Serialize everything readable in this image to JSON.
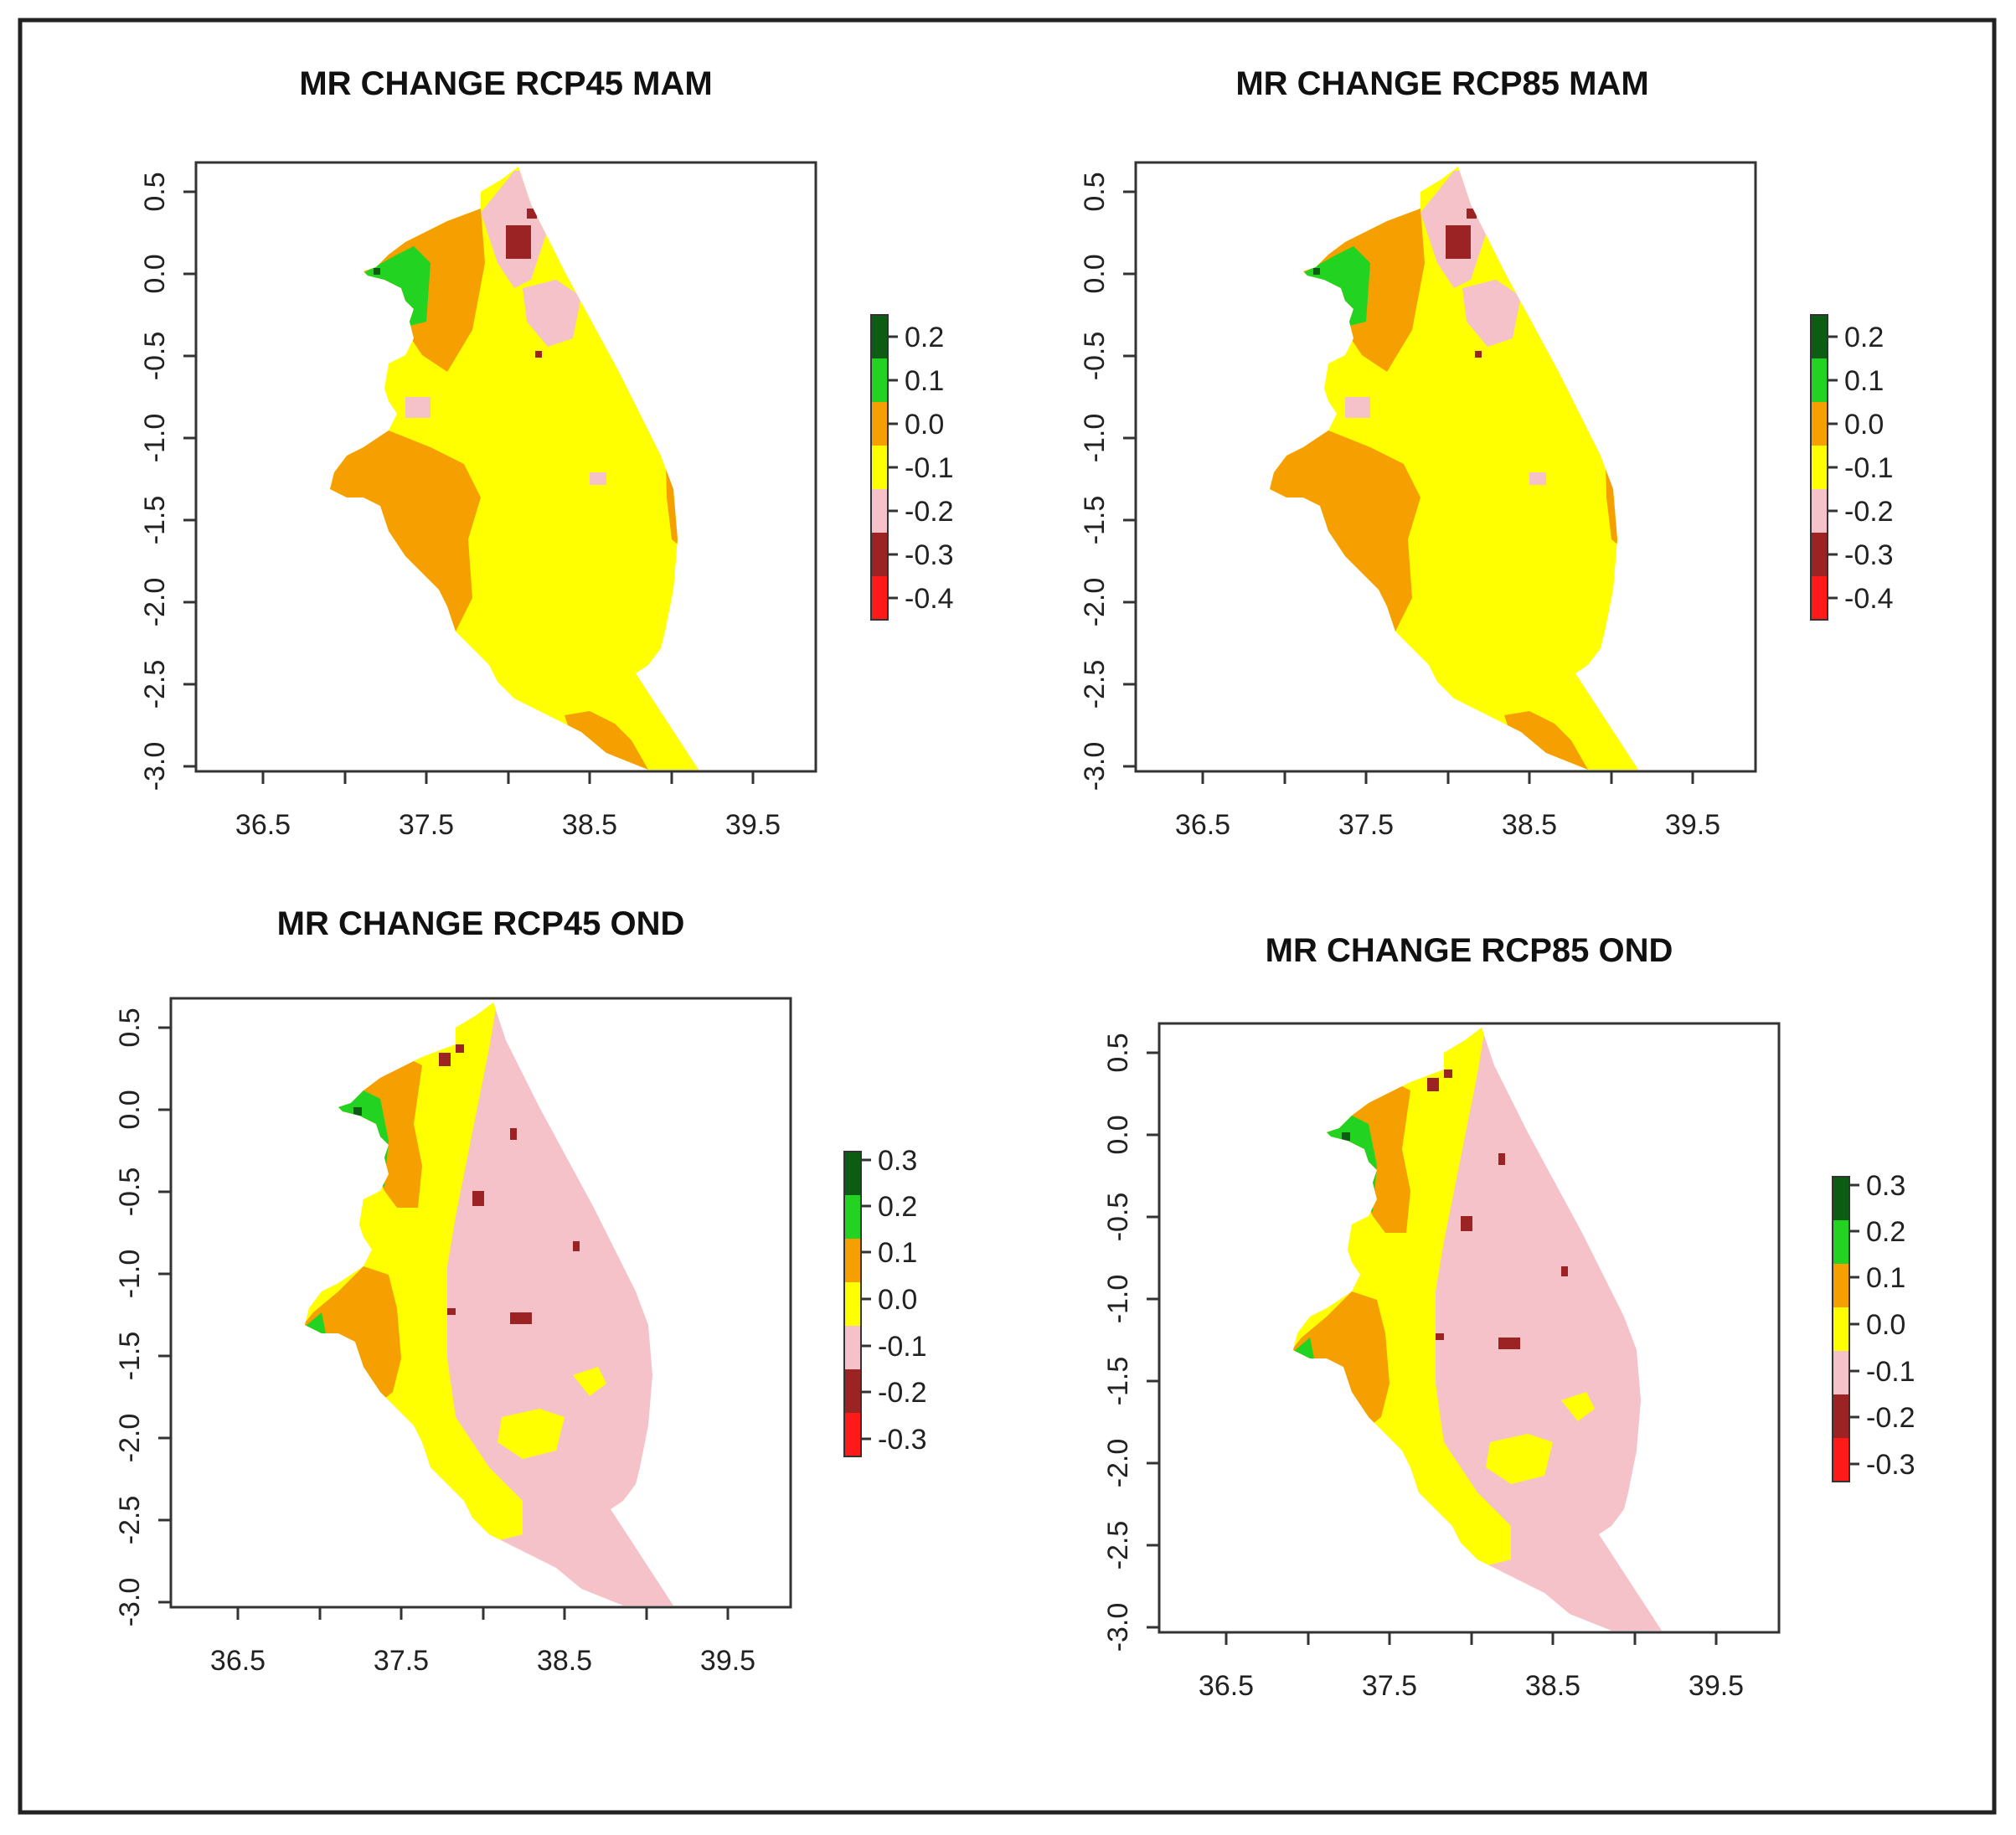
{
  "figure": {
    "panels": [
      {
        "title": "MR CHANGE RCP45 MAM",
        "x_ticks": [
          "36.5",
          "37.5",
          "38.5",
          "39.5"
        ],
        "y_ticks": [
          "0.5",
          "0.0",
          "-0.5",
          "-1.0",
          "-1.5",
          "-2.0",
          "-2.5",
          "-3.0"
        ],
        "legend_labels": [
          "0.2",
          "0.1",
          "0.0",
          "-0.1",
          "-0.2",
          "-0.3",
          "-0.4"
        ]
      },
      {
        "title": "MR CHANGE RCP85 MAM",
        "x_ticks": [
          "36.5",
          "37.5",
          "38.5",
          "39.5"
        ],
        "y_ticks": [
          "0.5",
          "0.0",
          "-0.5",
          "-1.0",
          "-1.5",
          "-2.0",
          "-2.5",
          "-3.0"
        ],
        "legend_labels": [
          "0.2",
          "0.1",
          "0.0",
          "-0.1",
          "-0.2",
          "-0.3",
          "-0.4"
        ]
      },
      {
        "title": "MR CHANGE RCP45 OND",
        "x_ticks": [
          "36.5",
          "37.5",
          "38.5",
          "39.5"
        ],
        "y_ticks": [
          "0.5",
          "0.0",
          "-0.5",
          "-1.0",
          "-1.5",
          "-2.0",
          "-2.5",
          "-3.0"
        ],
        "legend_labels": [
          "0.3",
          "0.2",
          "0.1",
          "0.0",
          "-0.1",
          "-0.2",
          "-0.3"
        ]
      },
      {
        "title": "MR CHANGE RCP85 OND",
        "x_ticks": [
          "36.5",
          "37.5",
          "38.5",
          "39.5"
        ],
        "y_ticks": [
          "0.5",
          "0.0",
          "-0.5",
          "-1.0",
          "-1.5",
          "-2.0",
          "-2.5",
          "-3.0"
        ],
        "legend_labels": [
          "0.3",
          "0.2",
          "0.1",
          "0.0",
          "-0.1",
          "-0.2",
          "-0.3"
        ]
      }
    ],
    "legend_colors": [
      "#0d5c14",
      "#22d322",
      "#f5a000",
      "#ffff00",
      "#f4c2c8",
      "#9c2323",
      "#ff1a1a"
    ],
    "fill_colors": {
      "yellow": "#ffff00",
      "orange": "#f5a000",
      "green": "#22d322",
      "dark_green": "#0d5c14",
      "pink": "#f4c2c8",
      "dark_red": "#9c2323"
    }
  }
}
